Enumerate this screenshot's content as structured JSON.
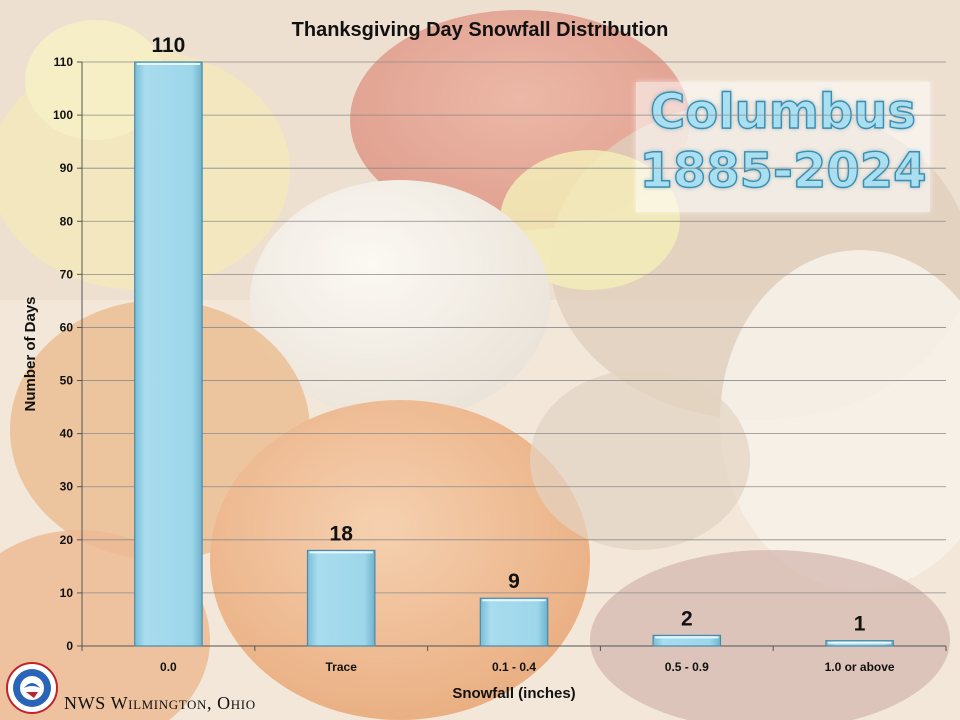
{
  "chart_data": {
    "type": "bar",
    "title": "Thanksgiving Day Snowfall Distribution",
    "xlabel": "Snowfall (inches)",
    "ylabel": "Number of Days",
    "categories": [
      "0.0",
      "Trace",
      "0.1 - 0.4",
      "0.5 - 0.9",
      "1.0 or above"
    ],
    "values": [
      110,
      18,
      9,
      2,
      1
    ],
    "data_labels": [
      "110",
      "18",
      "9",
      "2",
      "1"
    ],
    "yticks": [
      "0",
      "10",
      "20",
      "30",
      "40",
      "50",
      "60",
      "70",
      "80",
      "90",
      "100",
      "110"
    ],
    "ylim": [
      0,
      110
    ],
    "grid": true,
    "bar_color": "#9dd6ea",
    "legend": "none"
  },
  "overlay": {
    "line1": "Columbus",
    "line2": "1885-2024"
  },
  "footer": {
    "text": "NWS Wilmington, Ohio",
    "logo_icon": "nws-logo-icon"
  }
}
